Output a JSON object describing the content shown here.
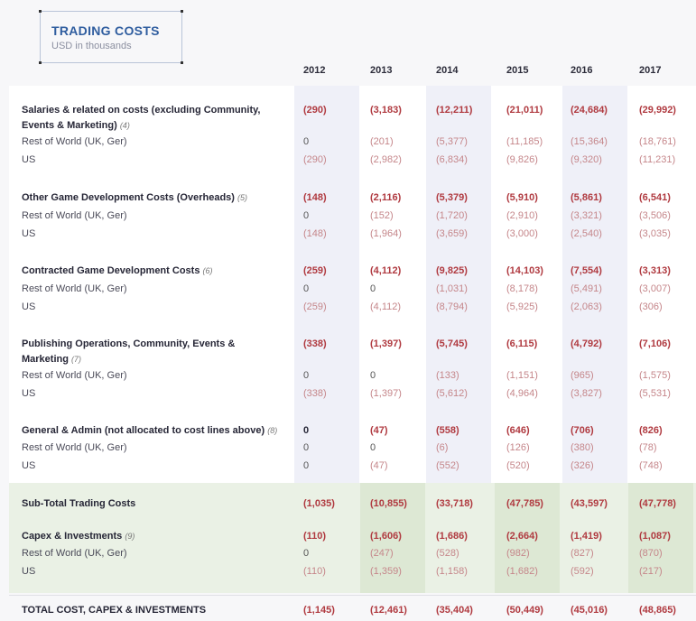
{
  "header": {
    "title": "TRADING COSTS",
    "subtitle": "USD in thousands"
  },
  "years": [
    "2012",
    "2013",
    "2014",
    "2015",
    "2016",
    "2017"
  ],
  "sections": [
    {
      "label": "Salaries & related on costs (excluding Community, Events & Marketing)",
      "note": "(4)",
      "total": [
        "(290)",
        "(3,183)",
        "(12,211)",
        "(21,011)",
        "(24,684)",
        "(29,992)"
      ],
      "rows": [
        {
          "label": "Rest of World (UK, Ger)",
          "values": [
            "0",
            "(201)",
            "(5,377)",
            "(11,185)",
            "(15,364)",
            "(18,761)"
          ]
        },
        {
          "label": "US",
          "values": [
            "(290)",
            "(2,982)",
            "(6,834)",
            "(9,826)",
            "(9,320)",
            "(11,231)"
          ]
        }
      ]
    },
    {
      "label": "Other Game Development Costs (Overheads)",
      "note": "(5)",
      "total": [
        "(148)",
        "(2,116)",
        "(5,379)",
        "(5,910)",
        "(5,861)",
        "(6,541)"
      ],
      "rows": [
        {
          "label": "Rest of World (UK, Ger)",
          "values": [
            "0",
            "(152)",
            "(1,720)",
            "(2,910)",
            "(3,321)",
            "(3,506)"
          ]
        },
        {
          "label": "US",
          "values": [
            "(148)",
            "(1,964)",
            "(3,659)",
            "(3,000)",
            "(2,540)",
            "(3,035)"
          ]
        }
      ]
    },
    {
      "label": "Contracted Game Development Costs",
      "note": "(6)",
      "total": [
        "(259)",
        "(4,112)",
        "(9,825)",
        "(14,103)",
        "(7,554)",
        "(3,313)"
      ],
      "rows": [
        {
          "label": "Rest of World (UK, Ger)",
          "values": [
            "0",
            "0",
            "(1,031)",
            "(8,178)",
            "(5,491)",
            "(3,007)"
          ]
        },
        {
          "label": "US",
          "values": [
            "(259)",
            "(4,112)",
            "(8,794)",
            "(5,925)",
            "(2,063)",
            "(306)"
          ]
        }
      ]
    },
    {
      "label": "Publishing Operations, Community, Events & Marketing",
      "note": "(7)",
      "total": [
        "(338)",
        "(1,397)",
        "(5,745)",
        "(6,115)",
        "(4,792)",
        "(7,106)"
      ],
      "rows": [
        {
          "label": "Rest of World (UK, Ger)",
          "values": [
            "0",
            "0",
            "(133)",
            "(1,151)",
            "(965)",
            "(1,575)"
          ]
        },
        {
          "label": "US",
          "values": [
            "(338)",
            "(1,397)",
            "(5,612)",
            "(4,964)",
            "(3,827)",
            "(5,531)"
          ]
        }
      ]
    },
    {
      "label": "General & Admin (not allocated to cost lines above)",
      "note": "(8)",
      "total": [
        "0",
        "(47)",
        "(558)",
        "(646)",
        "(706)",
        "(826)"
      ],
      "rows": [
        {
          "label": "Rest of World (UK, Ger)",
          "values": [
            "0",
            "0",
            "(6)",
            "(126)",
            "(380)",
            "(78)"
          ]
        },
        {
          "label": "US",
          "values": [
            "0",
            "(47)",
            "(552)",
            "(520)",
            "(326)",
            "(748)"
          ]
        }
      ]
    }
  ],
  "subtotal": {
    "label": "Sub-Total Trading Costs",
    "values": [
      "(1,035)",
      "(10,855)",
      "(33,718)",
      "(47,785)",
      "(43,597)",
      "(47,778)"
    ]
  },
  "capex": {
    "label": "Capex & Investments",
    "note": "(9)",
    "total": [
      "(110)",
      "(1,606)",
      "(1,686)",
      "(2,664)",
      "(1,419)",
      "(1,087)"
    ],
    "rows": [
      {
        "label": "Rest of World (UK, Ger)",
        "values": [
          "0",
          "(247)",
          "(528)",
          "(982)",
          "(827)",
          "(870)"
        ]
      },
      {
        "label": "US",
        "values": [
          "(110)",
          "(1,359)",
          "(1,158)",
          "(1,682)",
          "(592)",
          "(217)"
        ]
      }
    ]
  },
  "grand_total": {
    "label": "TOTAL COST, CAPEX & INVESTMENTS",
    "values": [
      "(1,145)",
      "(12,461)",
      "(35,404)",
      "(50,449)",
      "(45,016)",
      "(48,865)"
    ]
  }
}
